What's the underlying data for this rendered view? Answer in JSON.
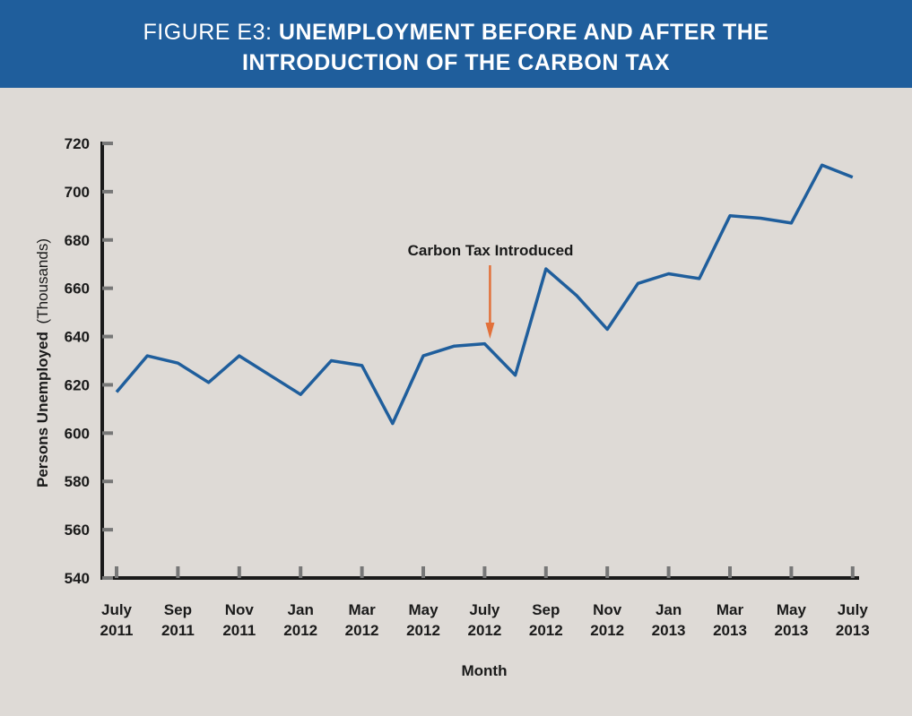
{
  "header": {
    "prefix": "FIGURE E3:",
    "title_part1": "UNEMPLOYMENT BEFORE AND AFTER THE",
    "title_part2": "INTRODUCTION OF THE CARBON TAX"
  },
  "colors": {
    "header_bg": "#1f5e9c",
    "line": "#1f5e9c",
    "arrow": "#e2703a",
    "background": "#dedad6"
  },
  "chart_data": {
    "type": "line",
    "title": "FIGURE E3: UNEMPLOYMENT BEFORE AND AFTER THE INTRODUCTION OF THE CARBON TAX",
    "xlabel": "Month",
    "ylabel_bold": "Persons Unemployed",
    "ylabel_normal": "(Thousands)",
    "ylim": [
      540,
      720
    ],
    "yticks": [
      540,
      560,
      580,
      600,
      620,
      640,
      660,
      680,
      700,
      720
    ],
    "x": [
      "Jul 2011",
      "Aug 2011",
      "Sep 2011",
      "Oct 2011",
      "Nov 2011",
      "Dec 2011",
      "Jan 2012",
      "Feb 2012",
      "Mar 2012",
      "Apr 2012",
      "May 2012",
      "Jun 2012",
      "Jul 2012",
      "Aug 2012",
      "Sep 2012",
      "Oct 2012",
      "Nov 2012",
      "Dec 2012",
      "Jan 2013",
      "Feb 2013",
      "Mar 2013",
      "Apr 2013",
      "May 2013",
      "Jun 2013",
      "Jul 2013"
    ],
    "values": [
      617,
      632,
      629,
      621,
      632,
      624,
      616,
      630,
      628,
      604,
      632,
      636,
      637,
      624,
      668,
      657,
      643,
      662,
      666,
      664,
      690,
      689,
      687,
      711,
      706
    ],
    "xtick_labels": [
      {
        "month": "July",
        "year": "2011"
      },
      {
        "month": "Sep",
        "year": "2011"
      },
      {
        "month": "Nov",
        "year": "2011"
      },
      {
        "month": "Jan",
        "year": "2012"
      },
      {
        "month": "Mar",
        "year": "2012"
      },
      {
        "month": "May",
        "year": "2012"
      },
      {
        "month": "July",
        "year": "2012"
      },
      {
        "month": "Sep",
        "year": "2012"
      },
      {
        "month": "Nov",
        "year": "2012"
      },
      {
        "month": "Jan",
        "year": "2013"
      },
      {
        "month": "Mar",
        "year": "2013"
      },
      {
        "month": "May",
        "year": "2013"
      },
      {
        "month": "July",
        "year": "2013"
      }
    ],
    "annotation": {
      "text": "Carbon Tax Introduced",
      "x": "Jul 2012"
    },
    "grid": false
  }
}
